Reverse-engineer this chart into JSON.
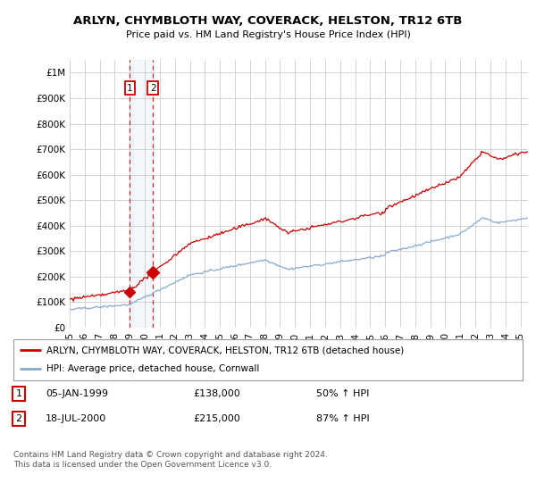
{
  "title": "ARLYN, CHYMBLOTH WAY, COVERACK, HELSTON, TR12 6TB",
  "subtitle": "Price paid vs. HM Land Registry's House Price Index (HPI)",
  "xlim_start": 1995.0,
  "xlim_end": 2025.5,
  "ylim_min": 0,
  "ylim_max": 1050000,
  "yticks": [
    0,
    100000,
    200000,
    300000,
    400000,
    500000,
    600000,
    700000,
    800000,
    900000,
    1000000
  ],
  "ytick_labels": [
    "£0",
    "£100K",
    "£200K",
    "£300K",
    "£400K",
    "£500K",
    "£600K",
    "£700K",
    "£800K",
    "£900K",
    "£1M"
  ],
  "xticks": [
    1995,
    1996,
    1997,
    1998,
    1999,
    2000,
    2001,
    2002,
    2003,
    2004,
    2005,
    2006,
    2007,
    2008,
    2009,
    2010,
    2011,
    2012,
    2013,
    2014,
    2015,
    2016,
    2017,
    2018,
    2019,
    2020,
    2021,
    2022,
    2023,
    2024,
    2025
  ],
  "sale1_x": 1999.01,
  "sale1_y": 138000,
  "sale1_label": "1",
  "sale1_date": "05-JAN-1999",
  "sale1_price": "£138,000",
  "sale1_hpi": "50% ↑ HPI",
  "sale2_x": 2000.54,
  "sale2_y": 215000,
  "sale2_label": "2",
  "sale2_date": "18-JUL-2000",
  "sale2_price": "£215,000",
  "sale2_hpi": "87% ↑ HPI",
  "property_line_color": "#cc0000",
  "hpi_line_color": "#88aacc",
  "sale_dot_color": "#cc0000",
  "vline_color": "#cc0000",
  "bg_color": "#ffffff",
  "grid_color": "#cccccc",
  "legend_label1": "ARLYN, CHYMBLOTH WAY, COVERACK, HELSTON, TR12 6TB (detached house)",
  "legend_label2": "HPI: Average price, detached house, Cornwall",
  "footnote": "Contains HM Land Registry data © Crown copyright and database right 2024.\nThis data is licensed under the Open Government Licence v3.0."
}
